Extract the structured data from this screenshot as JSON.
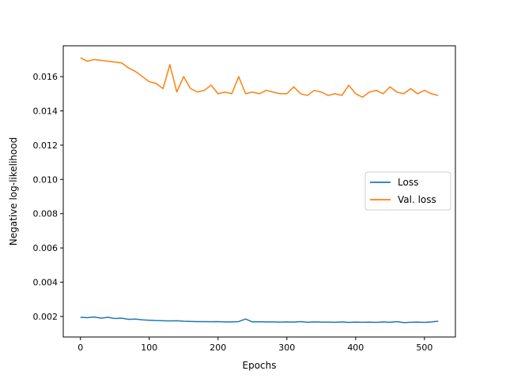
{
  "chart_data": {
    "type": "line",
    "title": "",
    "xlabel": "Epochs",
    "ylabel": "Negative log-likelihood",
    "xlim": [
      -25,
      545
    ],
    "ylim": [
      0.0008,
      0.0178
    ],
    "xticks": [
      0,
      100,
      200,
      300,
      400,
      500
    ],
    "yticks": [
      0.002,
      0.004,
      0.006,
      0.008,
      0.01,
      0.012,
      0.014,
      0.016
    ],
    "xtick_labels": [
      "0",
      "100",
      "200",
      "300",
      "400",
      "500"
    ],
    "ytick_labels": [
      "0.002",
      "0.004",
      "0.006",
      "0.008",
      "0.010",
      "0.012",
      "0.014",
      "0.016"
    ],
    "grid": false,
    "legend_position": "center-right",
    "series": [
      {
        "name": "Loss",
        "color": "#1f77b4",
        "x": [
          0,
          10,
          20,
          30,
          40,
          50,
          60,
          70,
          80,
          90,
          100,
          110,
          120,
          130,
          140,
          150,
          160,
          170,
          180,
          190,
          200,
          210,
          220,
          230,
          240,
          250,
          260,
          270,
          280,
          290,
          300,
          310,
          320,
          330,
          340,
          350,
          360,
          370,
          380,
          390,
          400,
          410,
          420,
          430,
          440,
          450,
          460,
          470,
          480,
          490,
          500,
          510,
          520
        ],
        "y": [
          0.00195,
          0.00193,
          0.00197,
          0.0019,
          0.00195,
          0.00188,
          0.0019,
          0.00183,
          0.00185,
          0.0018,
          0.00178,
          0.00176,
          0.00175,
          0.00174,
          0.00175,
          0.00172,
          0.00171,
          0.0017,
          0.0017,
          0.00169,
          0.0017,
          0.00168,
          0.00168,
          0.0017,
          0.00185,
          0.00168,
          0.00169,
          0.00168,
          0.00168,
          0.00167,
          0.00168,
          0.00167,
          0.0017,
          0.00166,
          0.00168,
          0.00167,
          0.00167,
          0.00166,
          0.00168,
          0.00165,
          0.00167,
          0.00166,
          0.00167,
          0.00165,
          0.00168,
          0.00166,
          0.0017,
          0.00164,
          0.00166,
          0.00167,
          0.00165,
          0.00168,
          0.00172
        ]
      },
      {
        "name": "Val. loss",
        "color": "#ff7f0e",
        "x": [
          0,
          10,
          20,
          30,
          40,
          50,
          60,
          70,
          80,
          90,
          100,
          110,
          120,
          130,
          140,
          150,
          160,
          170,
          180,
          190,
          200,
          210,
          220,
          230,
          240,
          250,
          260,
          270,
          280,
          290,
          300,
          310,
          320,
          330,
          340,
          350,
          360,
          370,
          380,
          390,
          400,
          410,
          420,
          430,
          440,
          450,
          460,
          470,
          480,
          490,
          500,
          510,
          520
        ],
        "y": [
          0.0171,
          0.0169,
          0.017,
          0.01695,
          0.0169,
          0.01685,
          0.0168,
          0.0165,
          0.0163,
          0.016,
          0.0157,
          0.0156,
          0.0153,
          0.0167,
          0.0151,
          0.016,
          0.0153,
          0.0151,
          0.0152,
          0.0155,
          0.015,
          0.0151,
          0.015,
          0.016,
          0.015,
          0.0151,
          0.015,
          0.0152,
          0.0151,
          0.015,
          0.015,
          0.0154,
          0.015,
          0.0149,
          0.0152,
          0.0151,
          0.0149,
          0.015,
          0.0149,
          0.0155,
          0.015,
          0.0148,
          0.0151,
          0.0152,
          0.015,
          0.0154,
          0.0151,
          0.015,
          0.0153,
          0.015,
          0.0152,
          0.015,
          0.0149
        ]
      }
    ]
  }
}
